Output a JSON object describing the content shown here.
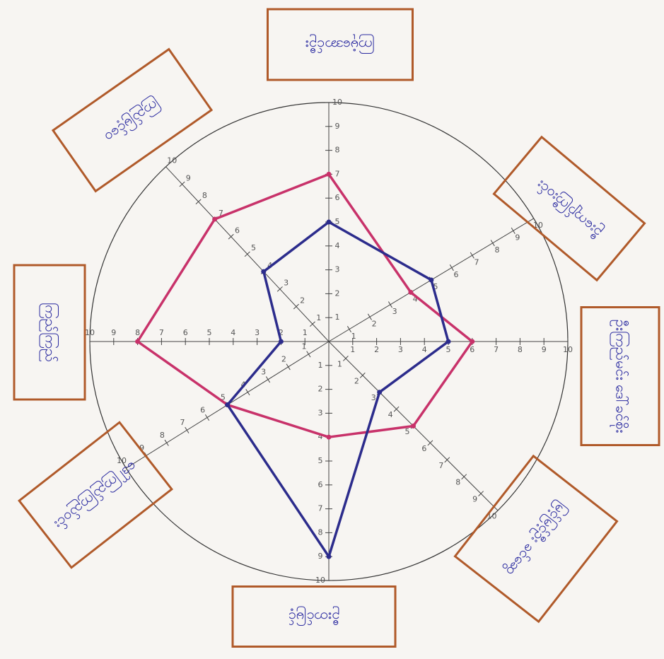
{
  "chart_data": {
    "type": "radar",
    "categories": [
      "ကြမုံအောင်ဦး",
      "ဦးကျော်ကြီးဝင်း",
      "ဦးကြည်မင်း ဒေါ်ခင်စိုး",
      "မြင့်မြင့်ဦး ခင်ဆွေ",
      "ဦးတင်မြင့်",
      "ဒေါ်ကြည်ကြည်ဝင်း",
      "ကြည်ကြည်",
      "ကြည်မြင့်ဝေ"
    ],
    "series": [
      {
        "color": "#c8326a",
        "values": [
          7,
          4,
          6,
          5,
          4,
          5,
          8,
          7
        ]
      },
      {
        "color": "#2c2c8c",
        "values": [
          5,
          5,
          5,
          3,
          9,
          5,
          2,
          4
        ]
      }
    ],
    "rlim": [
      0,
      10
    ],
    "rticks": [
      1,
      2,
      3,
      4,
      5,
      6,
      7,
      8,
      9,
      10
    ]
  }
}
